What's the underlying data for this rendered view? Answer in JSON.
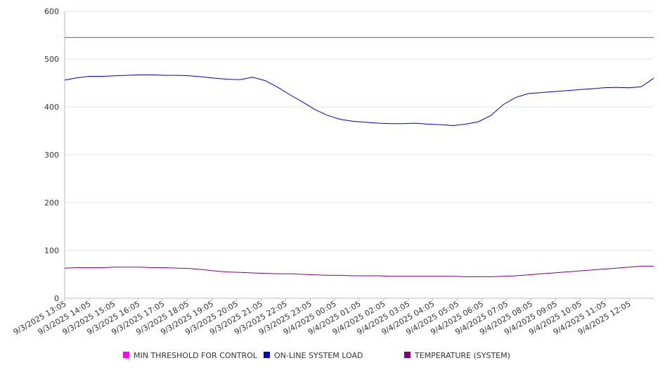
{
  "chart_data": {
    "type": "line",
    "title": "",
    "xlabel": "",
    "ylabel": "",
    "ylim": [
      0,
      600
    ],
    "y_ticks": [
      0,
      100,
      200,
      300,
      400,
      500,
      600
    ],
    "grid": "horizontal",
    "legend_position": "bottom",
    "x_tick_labels": [
      "9/3/2025 13:05",
      "9/3/2025 14:05",
      "9/3/2025 15:05",
      "9/3/2025 16:05",
      "9/3/2025 17:05",
      "9/3/2025 18:05",
      "9/3/2025 19:05",
      "9/3/2025 20:05",
      "9/3/2025 21:05",
      "9/3/2025 22:05",
      "9/3/2025 23:05",
      "9/4/2025 00:05",
      "9/4/2025 01:05",
      "9/4/2025 02:05",
      "9/4/2025 03:05",
      "9/4/2025 04:05",
      "9/4/2025 05:05",
      "9/4/2025 06:05",
      "9/4/2025 07:05",
      "9/4/2025 08:05",
      "9/4/2025 09:05",
      "9/4/2025 10:05",
      "9/4/2025 11:05",
      "9/4/2025 12:05"
    ],
    "x": [
      "9/3/2025 13:05",
      "9/3/2025 13:35",
      "9/3/2025 14:05",
      "9/3/2025 14:35",
      "9/3/2025 15:05",
      "9/3/2025 15:35",
      "9/3/2025 16:05",
      "9/3/2025 16:35",
      "9/3/2025 17:05",
      "9/3/2025 17:35",
      "9/3/2025 18:05",
      "9/3/2025 18:35",
      "9/3/2025 19:05",
      "9/3/2025 19:35",
      "9/3/2025 20:05",
      "9/3/2025 20:35",
      "9/3/2025 21:05",
      "9/3/2025 21:35",
      "9/3/2025 22:05",
      "9/3/2025 22:35",
      "9/3/2025 23:05",
      "9/3/2025 23:35",
      "9/4/2025 00:05",
      "9/4/2025 00:35",
      "9/4/2025 01:05",
      "9/4/2025 01:35",
      "9/4/2025 02:05",
      "9/4/2025 02:35",
      "9/4/2025 03:05",
      "9/4/2025 03:35",
      "9/4/2025 04:05",
      "9/4/2025 04:35",
      "9/4/2025 05:05",
      "9/4/2025 05:35",
      "9/4/2025 06:05",
      "9/4/2025 06:35",
      "9/4/2025 07:05",
      "9/4/2025 07:35",
      "9/4/2025 08:05",
      "9/4/2025 08:35",
      "9/4/2025 09:05",
      "9/4/2025 09:35",
      "9/4/2025 10:05",
      "9/4/2025 10:35",
      "9/4/2025 11:05",
      "9/4/2025 11:35",
      "9/4/2025 12:05",
      "9/4/2025 12:35"
    ],
    "series": [
      {
        "name": "MIN THRESHOLD FOR CONTROL",
        "color": "#ff00ff",
        "values": [
          545,
          545,
          545,
          545,
          545,
          545,
          545,
          545,
          545,
          545,
          545,
          545,
          545,
          545,
          545,
          545,
          545,
          545,
          545,
          545,
          545,
          545,
          545,
          545,
          545,
          545,
          545,
          545,
          545,
          545,
          545,
          545,
          545,
          545,
          545,
          545,
          545,
          545,
          545,
          545,
          545,
          545,
          545,
          545,
          545,
          545,
          545,
          545
        ]
      },
      {
        "name": "ON-LINE SYSTEM LOAD",
        "color": "#0000cc",
        "values": [
          456,
          461,
          464,
          464,
          465,
          466,
          467,
          467,
          466,
          466,
          465,
          463,
          460,
          458,
          457,
          462,
          455,
          441,
          425,
          410,
          394,
          382,
          374,
          370,
          368,
          366,
          365,
          365,
          366,
          364,
          363,
          361,
          364,
          369,
          382,
          405,
          420,
          428,
          430,
          432,
          434,
          436,
          438,
          440,
          441,
          440,
          442,
          460
        ]
      },
      {
        "name": "TEMPERATURE (SYSTEM)",
        "color": "#800080",
        "values": [
          63,
          64,
          64,
          64,
          65,
          65,
          65,
          64,
          64,
          63,
          62,
          60,
          57,
          55,
          54,
          53,
          52,
          51,
          51,
          50,
          49,
          48,
          48,
          47,
          47,
          47,
          46,
          46,
          46,
          46,
          46,
          46,
          45,
          45,
          45,
          46,
          47,
          49,
          51,
          53,
          55,
          57,
          59,
          61,
          63,
          65,
          67,
          67
        ]
      }
    ]
  },
  "colors": {
    "grid": "#e6e6e6",
    "axis": "#bbbbbb",
    "text": "#333333"
  }
}
